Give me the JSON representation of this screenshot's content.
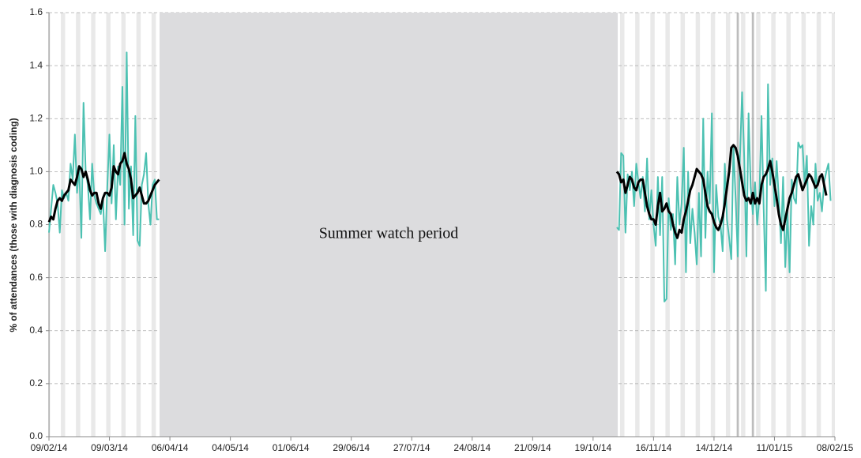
{
  "chart_data": {
    "type": "line",
    "annotation": "Summer watch period",
    "ylabel": "% of attendances (those with diagnosis coding)",
    "xlim": [
      "09/02/14",
      "08/02/15"
    ],
    "xticks": [
      "09/02/14",
      "09/03/14",
      "06/04/14",
      "04/05/14",
      "01/06/14",
      "29/06/14",
      "27/07/14",
      "24/08/14",
      "21/09/14",
      "19/10/14",
      "16/11/14",
      "14/12/14",
      "11/01/15",
      "08/02/15"
    ],
    "ylim": [
      0,
      1.6
    ],
    "yticks": [
      {
        "value": 0,
        "label": "0.0"
      },
      0.2,
      0.4,
      0.6,
      0.8,
      {
        "value": 1,
        "label": "1.0"
      },
      1.2,
      1.4,
      1.6
    ],
    "grid": true,
    "x": [
      "09/02/14",
      "10/02/14",
      "11/02/14",
      "12/02/14",
      "13/02/14",
      "14/02/14",
      "15/02/14",
      "16/02/14",
      "17/02/14",
      "18/02/14",
      "19/02/14",
      "20/02/14",
      "21/02/14",
      "22/02/14",
      "23/02/14",
      "24/02/14",
      "25/02/14",
      "26/02/14",
      "27/02/14",
      "28/02/14",
      "01/03/14",
      "02/03/14",
      "03/03/14",
      "04/03/14",
      "05/03/14",
      "06/03/14",
      "07/03/14",
      "08/03/14",
      "09/03/14",
      "10/03/14",
      "11/03/14",
      "12/03/14",
      "13/03/14",
      "14/03/14",
      "15/03/14",
      "16/03/14",
      "17/03/14",
      "18/03/14",
      "19/03/14",
      "20/03/14",
      "21/03/14",
      "22/03/14",
      "23/03/14",
      "24/03/14",
      "25/03/14",
      "26/03/14",
      "27/03/14",
      "28/03/14",
      "29/03/14",
      "30/03/14",
      "31/03/14",
      "01/04/14",
      "01/07/14",
      "30/10/14",
      "31/10/14",
      "01/11/14",
      "02/11/14",
      "03/11/14",
      "04/11/14",
      "05/11/14",
      "06/11/14",
      "07/11/14",
      "08/11/14",
      "09/11/14",
      "10/11/14",
      "11/11/14",
      "12/11/14",
      "13/11/14",
      "14/11/14",
      "15/11/14",
      "16/11/14",
      "17/11/14",
      "18/11/14",
      "19/11/14",
      "20/11/14",
      "21/11/14",
      "22/11/14",
      "23/11/14",
      "24/11/14",
      "25/11/14",
      "26/11/14",
      "27/11/14",
      "28/11/14",
      "29/11/14",
      "30/11/14",
      "01/12/14",
      "02/12/14",
      "03/12/14",
      "04/12/14",
      "05/12/14",
      "06/12/14",
      "07/12/14",
      "08/12/14",
      "09/12/14",
      "10/12/14",
      "11/12/14",
      "12/12/14",
      "13/12/14",
      "14/12/14",
      "15/12/14",
      "16/12/14",
      "17/12/14",
      "18/12/14",
      "19/12/14",
      "20/12/14",
      "21/12/14",
      "22/12/14",
      "23/12/14",
      "24/12/14",
      "25/12/14",
      "26/12/14",
      "27/12/14",
      "28/12/14",
      "29/12/14",
      "30/12/14",
      "31/12/14",
      "01/01/15",
      "02/01/15",
      "03/01/15",
      "04/01/15",
      "05/01/15",
      "06/01/15",
      "07/01/15",
      "08/01/15",
      "09/01/15",
      "10/01/15",
      "11/01/15",
      "12/01/15",
      "13/01/15",
      "14/01/15",
      "15/01/15",
      "16/01/15",
      "17/01/15",
      "18/01/15",
      "19/01/15",
      "20/01/15",
      "21/01/15",
      "22/01/15",
      "23/01/15",
      "24/01/15",
      "25/01/15",
      "26/01/15",
      "27/01/15",
      "28/01/15",
      "29/01/15",
      "30/01/15",
      "31/01/15",
      "01/02/15",
      "02/02/15",
      "03/02/15",
      "04/02/15",
      "05/02/15",
      "06/02/15"
    ],
    "series": [
      {
        "color": "#4cc1b2",
        "width": 2,
        "values": [
          0.77,
          0.86,
          0.95,
          0.92,
          0.88,
          0.77,
          0.93,
          0.9,
          0.92,
          0.89,
          1.03,
          0.97,
          1.14,
          0.92,
          1.02,
          0.75,
          1.26,
          1.0,
          0.95,
          0.82,
          1.03,
          0.91,
          0.88,
          0.86,
          0.84,
          0.9,
          0.7,
          0.94,
          1.14,
          0.88,
          1.1,
          0.82,
          1.02,
          0.95,
          1.32,
          0.8,
          1.45,
          0.86,
          1.02,
          0.76,
          1.21,
          0.74,
          0.72,
          0.95,
          0.99,
          1.07,
          0.88,
          0.8,
          0.95,
          0.97,
          0.82,
          0.82,
          null,
          0.79,
          0.78,
          1.07,
          1.06,
          0.77,
          0.99,
          0.93,
          1.0,
          0.87,
          1.03,
          0.96,
          0.9,
          0.98,
          0.85,
          1.05,
          0.82,
          0.93,
          0.8,
          0.72,
          0.98,
          0.76,
          0.98,
          0.51,
          0.52,
          0.9,
          0.78,
          0.84,
          0.65,
          0.98,
          0.8,
          0.88,
          1.09,
          0.62,
          1.0,
          0.73,
          0.86,
          0.77,
          0.65,
          0.92,
          0.68,
          1.2,
          0.75,
          1.0,
          0.88,
          1.22,
          0.62,
          0.95,
          0.83,
          0.8,
          0.7,
          1.03,
          0.82,
          0.75,
          0.67,
          1.1,
          0.9,
          0.68,
          1.05,
          1.3,
          1.05,
          0.68,
          1.22,
          0.94,
          0.84,
          0.96,
          0.8,
          0.9,
          1.21,
          0.86,
          0.55,
          1.33,
          0.95,
          1.05,
          0.87,
          1.04,
          0.9,
          0.73,
          0.98,
          0.64,
          0.85,
          0.62,
          0.97,
          0.9,
          0.88,
          1.11,
          1.09,
          1.1,
          0.95,
          1.06,
          0.72,
          0.87,
          0.8,
          1.03,
          0.89,
          0.92,
          0.85,
          0.96,
          1.0,
          1.03,
          0.89
        ]
      },
      {
        "color": "#000000",
        "width": 3,
        "values": [
          0.81,
          0.83,
          0.82,
          0.86,
          0.89,
          0.9,
          0.89,
          0.91,
          0.92,
          0.93,
          0.97,
          0.96,
          0.95,
          0.98,
          1.02,
          1.01,
          0.98,
          1.0,
          0.97,
          0.93,
          0.91,
          0.92,
          0.92,
          0.88,
          0.86,
          0.9,
          0.92,
          0.92,
          0.91,
          0.94,
          1.02,
          1.0,
          0.99,
          1.03,
          1.04,
          1.07,
          1.03,
          1.01,
          0.97,
          0.9,
          0.91,
          0.92,
          0.94,
          0.91,
          0.88,
          0.88,
          0.89,
          0.91,
          0.93,
          0.95,
          0.96,
          0.97,
          null,
          1.0,
          0.99,
          0.96,
          0.97,
          0.92,
          0.95,
          0.98,
          0.97,
          0.94,
          0.93,
          0.96,
          0.97,
          0.97,
          0.92,
          0.87,
          0.84,
          0.82,
          0.82,
          0.8,
          0.87,
          0.92,
          0.85,
          0.86,
          0.88,
          0.85,
          0.84,
          0.8,
          0.77,
          0.75,
          0.78,
          0.77,
          0.82,
          0.85,
          0.89,
          0.93,
          0.95,
          0.98,
          1.01,
          1.0,
          0.99,
          0.97,
          0.92,
          0.87,
          0.85,
          0.84,
          0.81,
          0.79,
          0.78,
          0.8,
          0.83,
          0.88,
          0.94,
          1.0,
          1.09,
          1.1,
          1.09,
          1.06,
          1.01,
          0.96,
          0.91,
          0.89,
          0.9,
          0.88,
          0.92,
          0.88,
          0.9,
          0.88,
          0.95,
          0.98,
          0.99,
          1.01,
          1.04,
          1.0,
          0.95,
          0.9,
          0.84,
          0.8,
          0.78,
          0.82,
          0.86,
          0.9,
          0.92,
          0.95,
          0.98,
          0.99,
          0.96,
          0.93,
          0.95,
          0.97,
          0.99,
          0.98,
          0.96,
          0.94,
          0.95,
          0.98,
          0.99,
          0.95,
          0.91,
          null,
          null
        ]
      }
    ]
  }
}
